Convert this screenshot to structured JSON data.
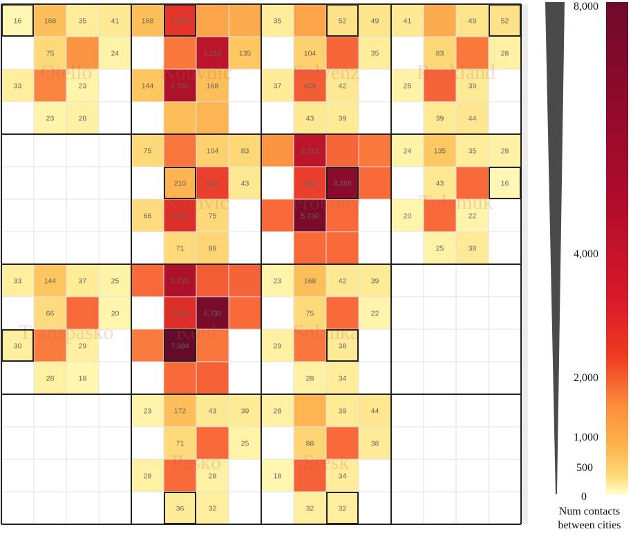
{
  "chart_data": {
    "type": "heatmap",
    "cities": [
      [
        "Otello",
        "Kouvnic",
        "Solvenz",
        "Ryzkland"
      ],
      [
        "",
        "Kamvic",
        "Prounov",
        "Tulamuk"
      ],
      [
        "Transpasko",
        "Koul",
        "Solanka",
        ""
      ],
      [
        "",
        "Pasko",
        "Sresk",
        ""
      ]
    ],
    "matrix": [
      [
        16,
        168,
        35,
        41,
        168,
        1016,
        269,
        242,
        35,
        269,
        52,
        49,
        41,
        242,
        49,
        52
      ],
      [
        null,
        75,
        333,
        24,
        null,
        449,
        2212,
        135,
        null,
        104,
        535,
        35,
        null,
        83,
        442,
        28
      ],
      [
        33,
        398,
        23,
        null,
        144,
        2731,
        168,
        null,
        37,
        629,
        42,
        null,
        25,
        572,
        39,
        null
      ],
      [
        null,
        23,
        28,
        null,
        null,
        172,
        205,
        null,
        null,
        43,
        39,
        null,
        null,
        39,
        44,
        null
      ],
      [
        null,
        null,
        null,
        null,
        75,
        449,
        104,
        83,
        333,
        2212,
        535,
        442,
        24,
        135,
        35,
        28
      ],
      [
        null,
        null,
        null,
        null,
        null,
        210,
        903,
        43,
        null,
        903,
        4358,
        500,
        null,
        43,
        500,
        16
      ],
      [
        null,
        null,
        null,
        null,
        66,
        1213,
        75,
        null,
        500,
        5730,
        500,
        null,
        20,
        500,
        22,
        null
      ],
      [
        null,
        null,
        null,
        null,
        null,
        71,
        88,
        null,
        null,
        500,
        500,
        null,
        null,
        25,
        38,
        null
      ],
      [
        33,
        144,
        37,
        25,
        500,
        2731,
        629,
        572,
        23,
        168,
        42,
        39,
        null,
        null,
        null,
        null
      ],
      [
        null,
        66,
        500,
        20,
        null,
        1213,
        5730,
        500,
        null,
        75,
        500,
        22,
        null,
        null,
        null,
        null
      ],
      [
        30,
        429,
        29,
        null,
        429,
        7384,
        448,
        null,
        29,
        448,
        38,
        null,
        null,
        null,
        null,
        null
      ],
      [
        null,
        28,
        18,
        null,
        null,
        499,
        581,
        null,
        null,
        28,
        34,
        null,
        null,
        null,
        null,
        null
      ],
      [
        null,
        null,
        null,
        null,
        23,
        172,
        43,
        39,
        28,
        205,
        39,
        44,
        null,
        null,
        null,
        null
      ],
      [
        null,
        null,
        null,
        null,
        null,
        71,
        500,
        25,
        null,
        88,
        500,
        38,
        null,
        null,
        null,
        null
      ],
      [
        null,
        null,
        null,
        null,
        28,
        499,
        28,
        null,
        18,
        581,
        34,
        null,
        null,
        null,
        null,
        null
      ],
      [
        null,
        null,
        null,
        null,
        null,
        36,
        32,
        null,
        null,
        32,
        32,
        null,
        null,
        null,
        null,
        null
      ]
    ],
    "unlabeled": [
      [
        0,
        6
      ],
      [
        0,
        7
      ],
      [
        0,
        9
      ],
      [
        0,
        13
      ],
      [
        1,
        2
      ],
      [
        1,
        5
      ],
      [
        1,
        10
      ],
      [
        1,
        14
      ],
      [
        2,
        1
      ],
      [
        2,
        13
      ],
      [
        3,
        5
      ],
      [
        3,
        6
      ],
      [
        4,
        5
      ],
      [
        4,
        8
      ],
      [
        4,
        10
      ],
      [
        4,
        11
      ],
      [
        5,
        11
      ],
      [
        5,
        14
      ],
      [
        6,
        8
      ],
      [
        6,
        10
      ],
      [
        6,
        13
      ],
      [
        7,
        9
      ],
      [
        7,
        10
      ],
      [
        8,
        4
      ],
      [
        8,
        6
      ],
      [
        8,
        7
      ],
      [
        9,
        2
      ],
      [
        9,
        7
      ],
      [
        9,
        10
      ],
      [
        10,
        1
      ],
      [
        10,
        4
      ],
      [
        10,
        6
      ],
      [
        10,
        9
      ],
      [
        11,
        5
      ],
      [
        11,
        6
      ],
      [
        12,
        9
      ],
      [
        13,
        6
      ],
      [
        13,
        10
      ],
      [
        14,
        5
      ],
      [
        14,
        9
      ]
    ],
    "highlighted": [
      [
        0,
        0
      ],
      [
        0,
        5
      ],
      [
        0,
        10
      ],
      [
        0,
        15
      ],
      [
        5,
        5
      ],
      [
        5,
        10
      ],
      [
        5,
        15
      ],
      [
        10,
        0
      ],
      [
        10,
        5
      ],
      [
        10,
        10
      ],
      [
        15,
        5
      ],
      [
        15,
        10
      ]
    ],
    "scale": {
      "ticks": [
        "0",
        "500",
        "1,000",
        "2,000",
        "4,000",
        "8,000"
      ],
      "min": 0,
      "max": 8000,
      "caption": [
        "Num contacts",
        "between cities"
      ]
    }
  }
}
